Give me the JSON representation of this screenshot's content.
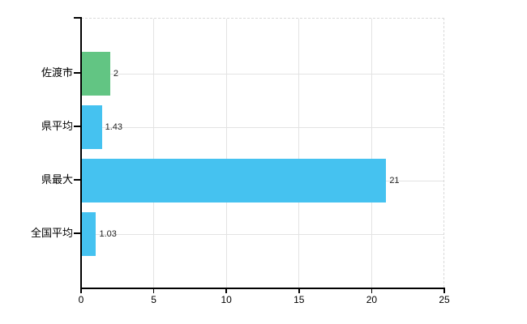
{
  "chart_data": {
    "type": "bar",
    "orientation": "horizontal",
    "title": "",
    "categories": [
      "佐渡市",
      "県平均",
      "県最大",
      "全国平均"
    ],
    "values": [
      2,
      1.43,
      21,
      1.03
    ],
    "value_labels": [
      "2",
      "1.43",
      "21",
      "1.03"
    ],
    "bar_colors": [
      "#62C583",
      "#45C2F0",
      "#45C2F0",
      "#45C2F0"
    ],
    "x_ticks": [
      0,
      5,
      10,
      15,
      20,
      25
    ],
    "xlim": [
      0,
      25
    ],
    "grid": true,
    "legend_position": "none",
    "colors": {
      "axis": "#000000",
      "gridline": "#E3E3E3",
      "plot_border": "#D9D9D9",
      "background": "#FFFFFF",
      "category_text": "#000000",
      "value_text": "#222222"
    }
  }
}
